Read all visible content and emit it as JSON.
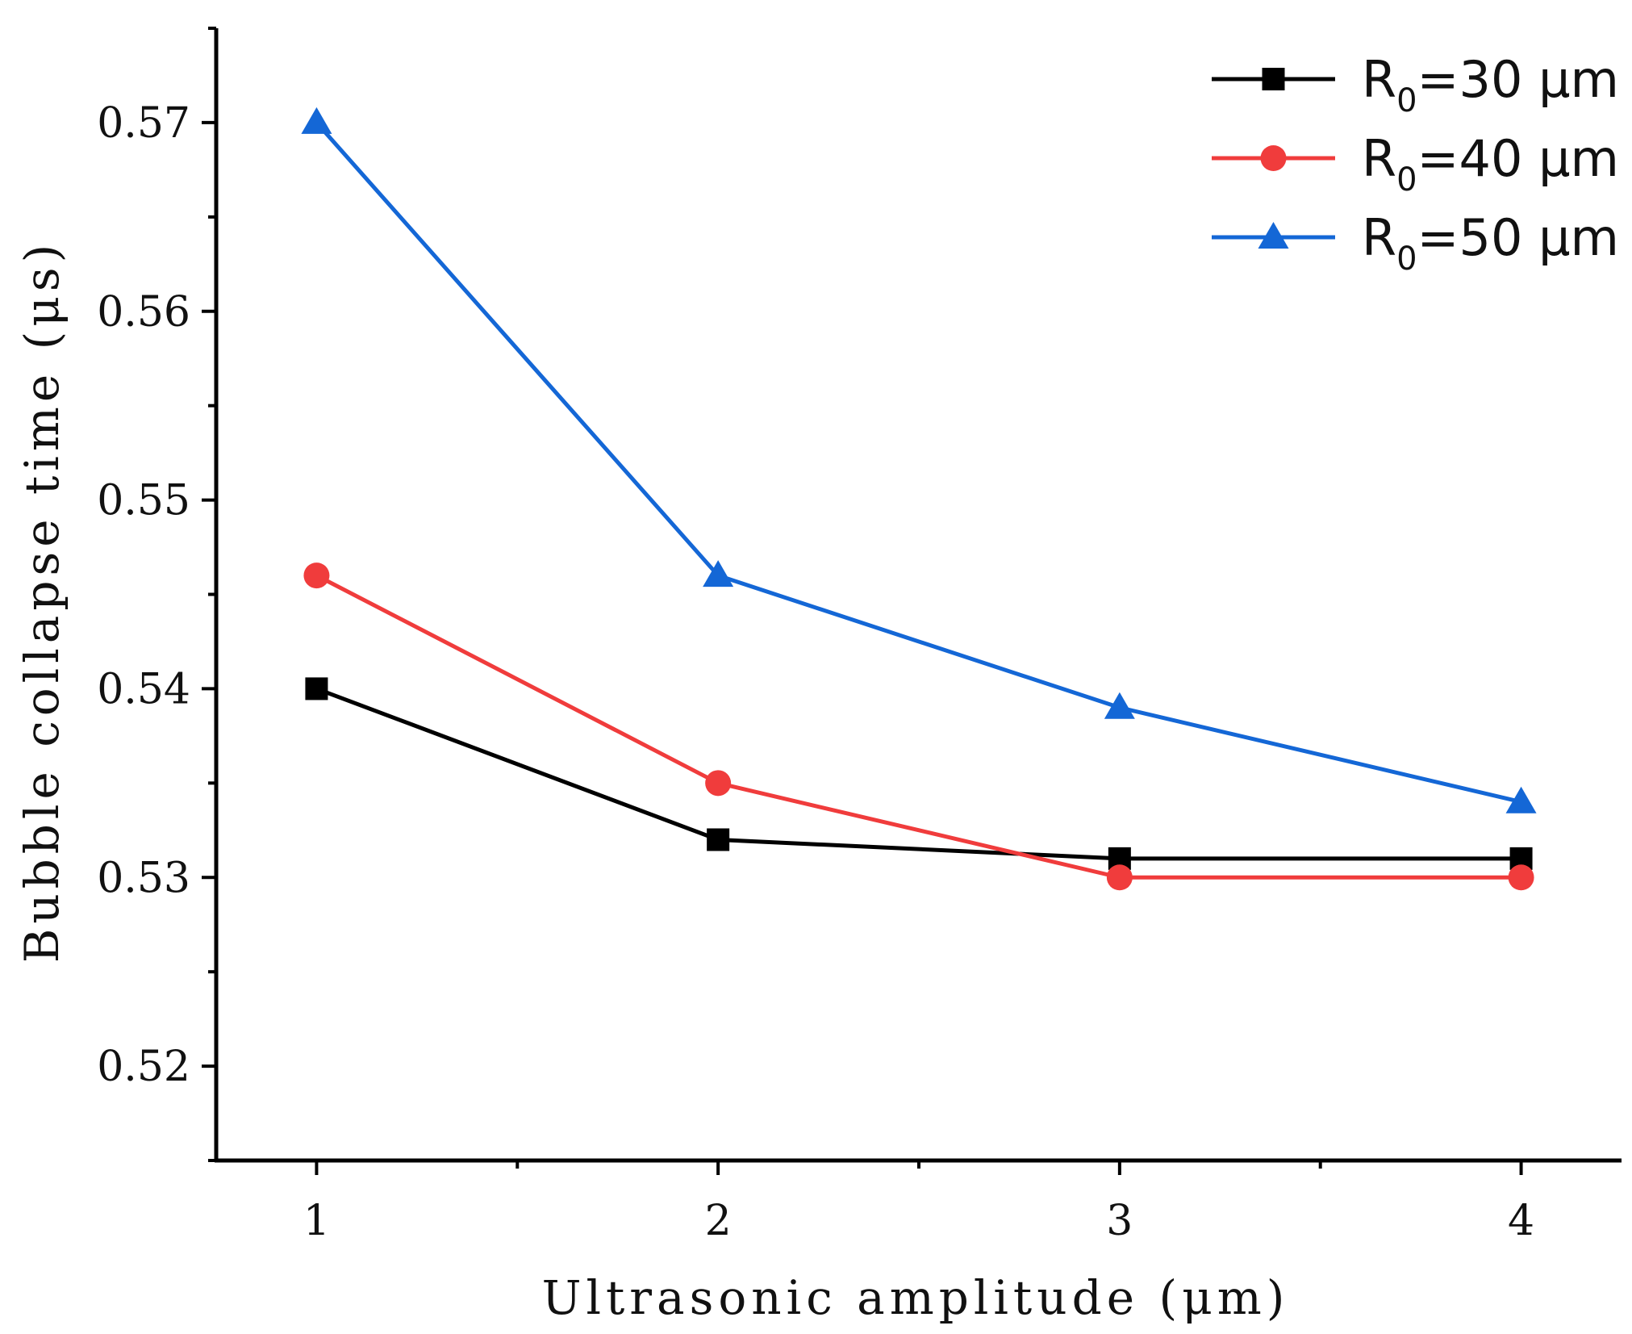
{
  "chart_data": {
    "type": "line",
    "title": "",
    "xlabel": "Ultrasonic amplitude (μm)",
    "ylabel": "Bubble collapse time (μs)",
    "x": [
      1,
      2,
      3,
      4
    ],
    "xlim": [
      0.75,
      4.25
    ],
    "ylim": [
      0.515,
      0.575
    ],
    "xticks": [
      1,
      2,
      3,
      4
    ],
    "xtick_labels": [
      "1",
      "2",
      "3",
      "4"
    ],
    "yticks": [
      0.52,
      0.53,
      0.54,
      0.55,
      0.56,
      0.57
    ],
    "ytick_labels": [
      "0.52",
      "0.53",
      "0.54",
      "0.55",
      "0.56",
      "0.57"
    ],
    "grid": false,
    "legend_position": "top-right",
    "series": [
      {
        "name": "R0=30 μm",
        "label_main": "R",
        "label_sub": "0",
        "label_rest": "=30 μm",
        "color": "#000000",
        "marker": "square",
        "values": [
          0.54,
          0.532,
          0.531,
          0.531
        ]
      },
      {
        "name": "R0=40 μm",
        "label_main": "R",
        "label_sub": "0",
        "label_rest": "=40 μm",
        "color": "#f03c3c",
        "marker": "circle",
        "values": [
          0.546,
          0.535,
          0.53,
          0.53
        ]
      },
      {
        "name": "R0=50 μm",
        "label_main": "R",
        "label_sub": "0",
        "label_rest": "=50 μm",
        "color": "#1467d6",
        "marker": "triangle",
        "values": [
          0.57,
          0.546,
          0.539,
          0.534
        ]
      }
    ]
  }
}
